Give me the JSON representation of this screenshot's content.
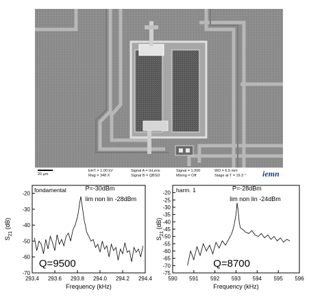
{
  "sem": {
    "scale_bar": "20 µm",
    "eht": "EHT = 1.00 kV",
    "mag": "Mag =   348 X",
    "signal_a": "Signal A = InLens",
    "signal_b": "Signal B = QBSD",
    "signal": "Signal = 1.000",
    "mixing": "Mixing = Off",
    "wd": "WD =  6.5 mm",
    "stage": "Stage at T =  19.3 °",
    "logo": "iemn",
    "colors": {
      "background": "#8a8a8a",
      "pad": "#585858",
      "beam": "#d8d8d8"
    }
  },
  "chart_data": [
    {
      "type": "line",
      "ylabel_main": "S",
      "ylabel_sub": "21",
      "ylabel_unit": " (dB)",
      "xlabel": "Frequency (kHz)",
      "corner_label": "fondamental",
      "annotations": [
        "P=-30dBm",
        "lim non lin -28dBm"
      ],
      "q_label": "Q=9500",
      "xlim": [
        293.4,
        294.4
      ],
      "ylim": [
        -70,
        -15
      ],
      "xticks": [
        293.4,
        293.6,
        293.8,
        294.0,
        294.2,
        294.4
      ],
      "xtick_labels": [
        "293.4",
        "293.6",
        "293.8",
        "294.0",
        "294.2",
        "294.4"
      ],
      "yticks": [
        -20,
        -30,
        -40,
        -50,
        -60,
        -70
      ],
      "ytick_labels": [
        "-20",
        "-30",
        "-40",
        "-50",
        "-60",
        "-70"
      ],
      "series": [
        {
          "x": [
            293.42,
            293.44,
            293.46,
            293.48,
            293.5,
            293.52,
            293.54,
            293.56,
            293.58,
            293.6,
            293.62,
            293.64,
            293.66,
            293.68,
            293.7,
            293.72,
            293.74,
            293.76,
            293.78,
            293.8,
            293.81,
            293.82,
            293.83,
            293.84,
            293.85,
            293.86,
            293.87,
            293.88,
            293.9,
            293.92,
            293.94,
            293.96,
            293.98,
            294.0,
            294.02,
            294.04,
            294.06,
            294.08,
            294.1,
            294.12,
            294.14,
            294.16,
            294.18,
            294.2,
            294.22,
            294.24,
            294.26,
            294.28,
            294.3,
            294.32,
            294.34,
            294.36,
            294.38
          ],
          "y": [
            -48,
            -56,
            -50,
            -52,
            -58,
            -49,
            -55,
            -47,
            -51,
            -56,
            -46,
            -52,
            -49,
            -53,
            -47,
            -45,
            -50,
            -43,
            -40,
            -35,
            -31,
            -26,
            -22,
            -27,
            -32,
            -37,
            -40,
            -44,
            -47,
            -50,
            -49,
            -54,
            -52,
            -57,
            -50,
            -55,
            -53,
            -60,
            -52,
            -56,
            -54,
            -62,
            -55,
            -58,
            -51,
            -57,
            -56,
            -63,
            -54,
            -57,
            -55,
            -60,
            -53
          ]
        }
      ]
    },
    {
      "type": "line",
      "ylabel_main": "S",
      "ylabel_sub": "21",
      "ylabel_unit": " (dB)",
      "xlabel": "Frequency (kHz)",
      "corner_label": "harm. 1",
      "annotations": [
        "P=-28dBm",
        "lim non lin -24dBm"
      ],
      "q_label": "Q=8700",
      "xlim": [
        590,
        596
      ],
      "ylim": [
        -75,
        -15
      ],
      "xticks": [
        590,
        591,
        592,
        593,
        594,
        595,
        596
      ],
      "xtick_labels": [
        "590",
        "591",
        "592",
        "593",
        "594",
        "595",
        "596"
      ],
      "yticks": [
        -20,
        -25,
        -30,
        -35,
        -40,
        -45,
        -50,
        -55,
        -60,
        -65,
        -70,
        -75
      ],
      "ytick_labels": [
        "-20",
        "-25",
        "-30",
        "-35",
        "-40",
        "-45",
        "-50",
        "-55",
        "-60",
        "-65",
        "-70",
        "-75"
      ],
      "series": [
        {
          "x": [
            590.7,
            590.85,
            591.0,
            591.15,
            591.3,
            591.45,
            591.6,
            591.75,
            591.9,
            592.05,
            592.2,
            592.35,
            592.5,
            592.65,
            592.8,
            592.9,
            593.0,
            593.05,
            593.1,
            593.15,
            593.2,
            593.3,
            593.45,
            593.6,
            593.75,
            593.9,
            594.05,
            594.2,
            594.35,
            594.5,
            594.65,
            594.8,
            594.95,
            595.1,
            595.25,
            595.4,
            595.55
          ],
          "y": [
            -70,
            -60,
            -66,
            -57,
            -63,
            -55,
            -60,
            -56,
            -62,
            -54,
            -58,
            -53,
            -56,
            -52,
            -48,
            -43,
            -35,
            -27,
            -32,
            -40,
            -44,
            -45,
            -47,
            -48,
            -46,
            -49,
            -50,
            -48,
            -51,
            -49,
            -52,
            -50,
            -53,
            -51,
            -54,
            -52,
            -53
          ]
        }
      ]
    }
  ]
}
